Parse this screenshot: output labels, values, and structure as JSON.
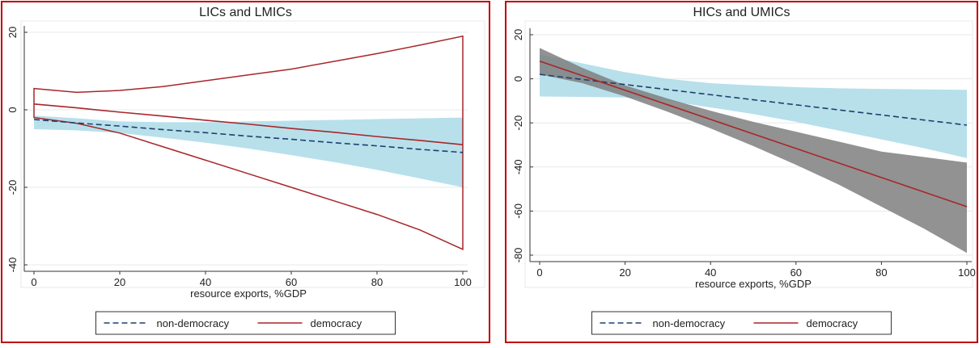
{
  "chart_data": [
    {
      "type": "line",
      "title": "LICs and LMICs",
      "x_label": "resource exports, %GDP",
      "x": [
        0,
        10,
        20,
        30,
        40,
        50,
        60,
        70,
        80,
        90,
        100
      ],
      "xlim": [
        0,
        100
      ],
      "xticks": [
        0,
        20,
        40,
        60,
        80,
        100
      ],
      "ylim": [
        -40,
        20
      ],
      "yticks": [
        -40,
        -20,
        0,
        20
      ],
      "grid": true,
      "series": [
        {
          "name": "non-democracy",
          "color": "#1f3f6e",
          "dash": true,
          "band_color": "#aadbe8",
          "band_style": "fill",
          "values": [
            -2.5,
            -3.4,
            -4.2,
            -5.1,
            -5.9,
            -6.8,
            -7.6,
            -8.5,
            -9.3,
            -10.2,
            -11
          ],
          "ci_upper": [
            -1.5,
            -2.2,
            -3,
            -3.2,
            -3.2,
            -3,
            -2.8,
            -2.6,
            -2.4,
            -2.2,
            -2
          ],
          "ci_lower": [
            -5,
            -5.3,
            -6,
            -7.2,
            -8.5,
            -10,
            -11.7,
            -13.5,
            -15.5,
            -17.7,
            -20
          ]
        },
        {
          "name": "democracy",
          "color": "#a8262a",
          "dash": false,
          "band_color": "#a8262a",
          "band_style": "outline",
          "values": [
            1.5,
            0.5,
            -0.6,
            -1.6,
            -2.7,
            -3.7,
            -4.8,
            -5.8,
            -6.9,
            -7.9,
            -9
          ],
          "ci_upper": [
            5.5,
            4.5,
            5,
            6,
            7.5,
            9,
            10.5,
            12.5,
            14.5,
            16.7,
            19
          ],
          "ci_lower": [
            -2,
            -3.5,
            -6,
            -9.5,
            -13,
            -16.5,
            -20,
            -23.5,
            -27,
            -31,
            -36
          ]
        }
      ]
    },
    {
      "type": "line",
      "title": "HICs and UMICs",
      "x_label": "resource exports, %GDP",
      "x": [
        0,
        10,
        20,
        30,
        40,
        50,
        60,
        70,
        80,
        90,
        100
      ],
      "xlim": [
        0,
        100
      ],
      "xticks": [
        0,
        20,
        40,
        60,
        80,
        100
      ],
      "ylim": [
        -80,
        20
      ],
      "yticks": [
        -80,
        -60,
        -40,
        -20,
        0,
        20
      ],
      "grid": true,
      "series": [
        {
          "name": "non-democracy",
          "color": "#1f3f6e",
          "dash": true,
          "band_color": "#aadbe8",
          "band_style": "fill",
          "values": [
            2,
            -0.3,
            -2.6,
            -4.9,
            -7.2,
            -9.5,
            -11.8,
            -14.1,
            -16.4,
            -18.7,
            -21
          ],
          "ci_upper": [
            11,
            7,
            3,
            0,
            -2,
            -3,
            -3.8,
            -4.3,
            -4.6,
            -4.8,
            -5
          ],
          "ci_lower": [
            -8,
            -8.2,
            -8.5,
            -10,
            -13,
            -16,
            -19.5,
            -23.5,
            -27.5,
            -31.5,
            -36
          ]
        },
        {
          "name": "democracy",
          "color": "#a8262a",
          "dash": false,
          "band_color": "#7f7f7f",
          "band_style": "fill",
          "values": [
            8,
            1.4,
            -5.2,
            -11.8,
            -18.4,
            -25,
            -31.6,
            -38.2,
            -44.8,
            -51.4,
            -58
          ],
          "ci_upper": [
            14,
            5,
            -3,
            -9,
            -14.5,
            -19.5,
            -24,
            -28.5,
            -33,
            -35.5,
            -38
          ],
          "ci_lower": [
            2,
            -2,
            -8,
            -15,
            -22.5,
            -30.5,
            -39,
            -48,
            -58,
            -68,
            -79
          ]
        }
      ]
    }
  ]
}
